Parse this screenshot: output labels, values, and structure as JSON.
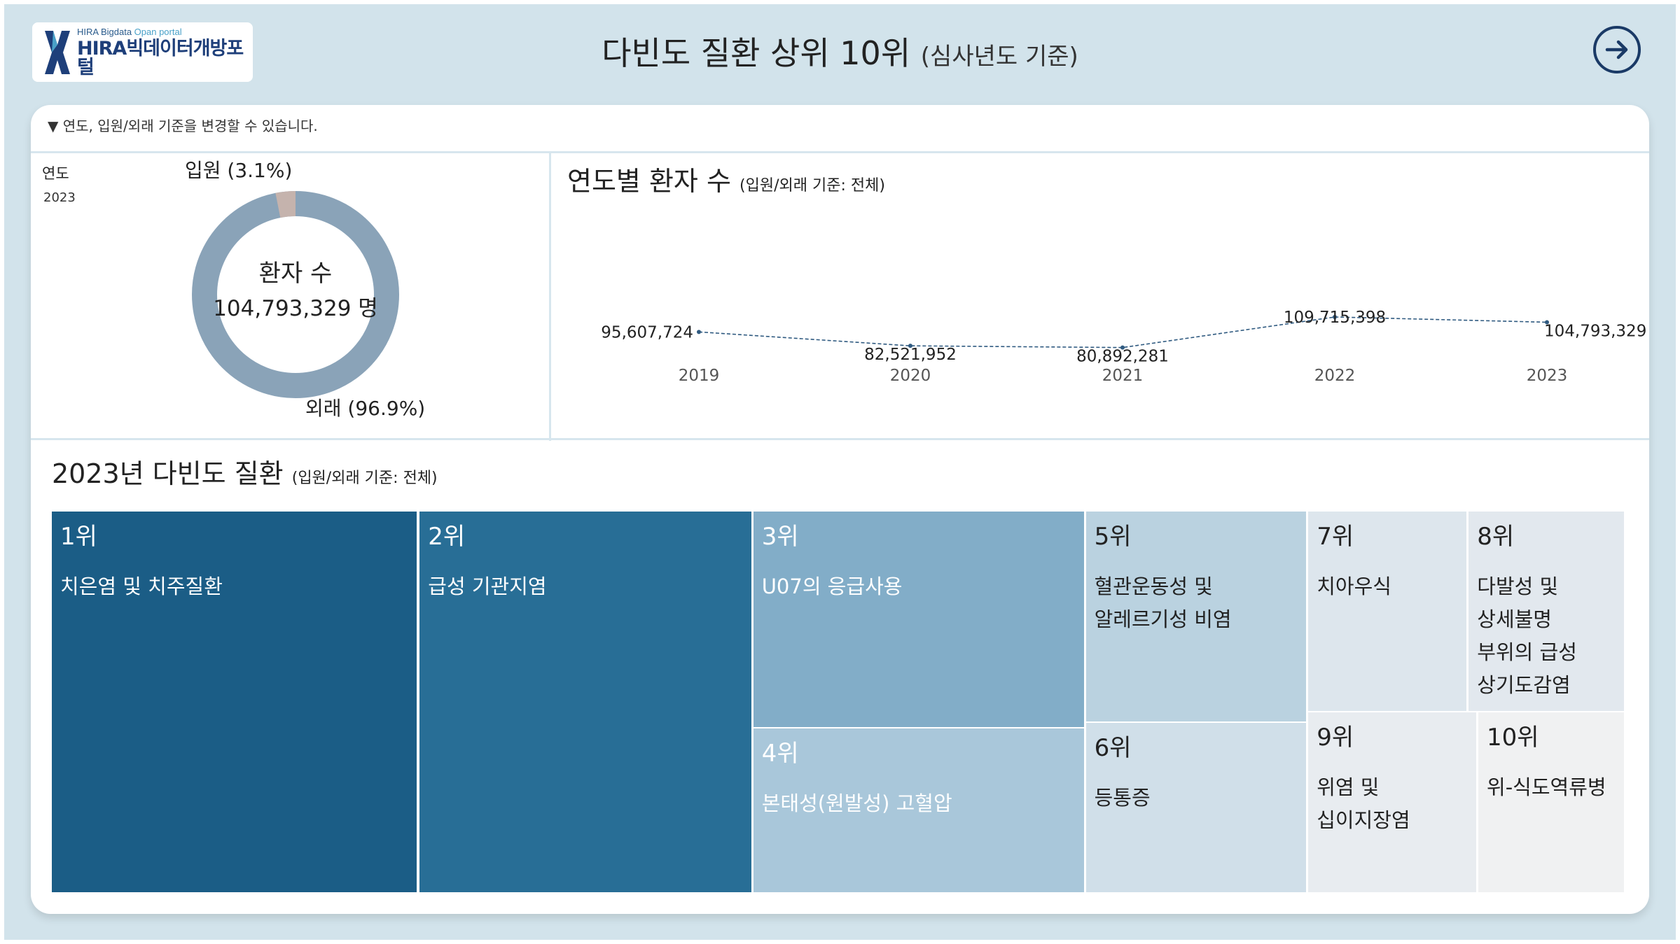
{
  "logo": {
    "sub_prefix": "HIRA Bigdata ",
    "sub_accent": "Opan portal",
    "main": "HIRA빅데이터개방포털"
  },
  "header": {
    "title": "다빈도 질환 상위 10위",
    "subtitle": "(심사년도 기준)"
  },
  "nav": {
    "next_icon": "arrow-right-circle-icon"
  },
  "hint": "▼ 연도, 입원/외래 기준을 변경할 수 있습니다.",
  "filter": {
    "label": "연도",
    "value": "2023"
  },
  "donut": {
    "center_label": "환자 수",
    "center_value": "104,793,329 명",
    "inpatient_label": "입원 (3.1%)",
    "outpatient_label": "외래 (96.9%)",
    "inpatient_share": 0.031,
    "colors": {
      "outpatient": "#8aa3b8",
      "inpatient": "#c5b3ad"
    }
  },
  "line_section": {
    "title": "연도별 환자 수",
    "subtitle": "(입원/외래 기준: 전체)"
  },
  "treemap_section": {
    "title": "2023년 다빈도 질환",
    "subtitle": "(입원/외래 기준: 전체)"
  },
  "chart_data": [
    {
      "type": "pie",
      "labels": [
        "입원",
        "외래"
      ],
      "values": [
        3.1,
        96.9
      ]
    },
    {
      "type": "line",
      "title": "연도별 환자 수",
      "x": [
        "2019",
        "2020",
        "2021",
        "2022",
        "2023"
      ],
      "values": [
        95607724,
        82521952,
        80892281,
        109715398,
        104793329
      ],
      "value_labels": [
        "95,607,724",
        "82,521,952",
        "80,892,281",
        "109,715,398",
        "104,793,329"
      ],
      "line_color": "#2f5a80"
    },
    {
      "type": "treemap",
      "title": "2023년 다빈도 질환",
      "items": [
        {
          "rank": "1위",
          "name": "치은염 및 치주질환",
          "color": "#1b5d86"
        },
        {
          "rank": "2위",
          "name": "급성 기관지염",
          "color": "#286e96"
        },
        {
          "rank": "3위",
          "name": "U07의 응급사용",
          "color": "#82adc8"
        },
        {
          "rank": "4위",
          "name": "본태성(원발성) 고혈압",
          "color": "#a9c7da"
        },
        {
          "rank": "5위",
          "name": "혈관운동성 및\n알레르기성 비염",
          "color": "#bad2e0"
        },
        {
          "rank": "6위",
          "name": "등통증",
          "color": "#d0dfe9"
        },
        {
          "rank": "7위",
          "name": "치아우식",
          "color": "#dde6ed"
        },
        {
          "rank": "8위",
          "name": "다발성 및\n상세불명\n부위의 급성\n상기도감염",
          "color": "#e2e8ee"
        },
        {
          "rank": "9위",
          "name": "위염 및\n십이지장염",
          "color": "#e8ecf0"
        },
        {
          "rank": "10위",
          "name": "위-식도역류병",
          "color": "#f0f1f2"
        }
      ]
    }
  ]
}
